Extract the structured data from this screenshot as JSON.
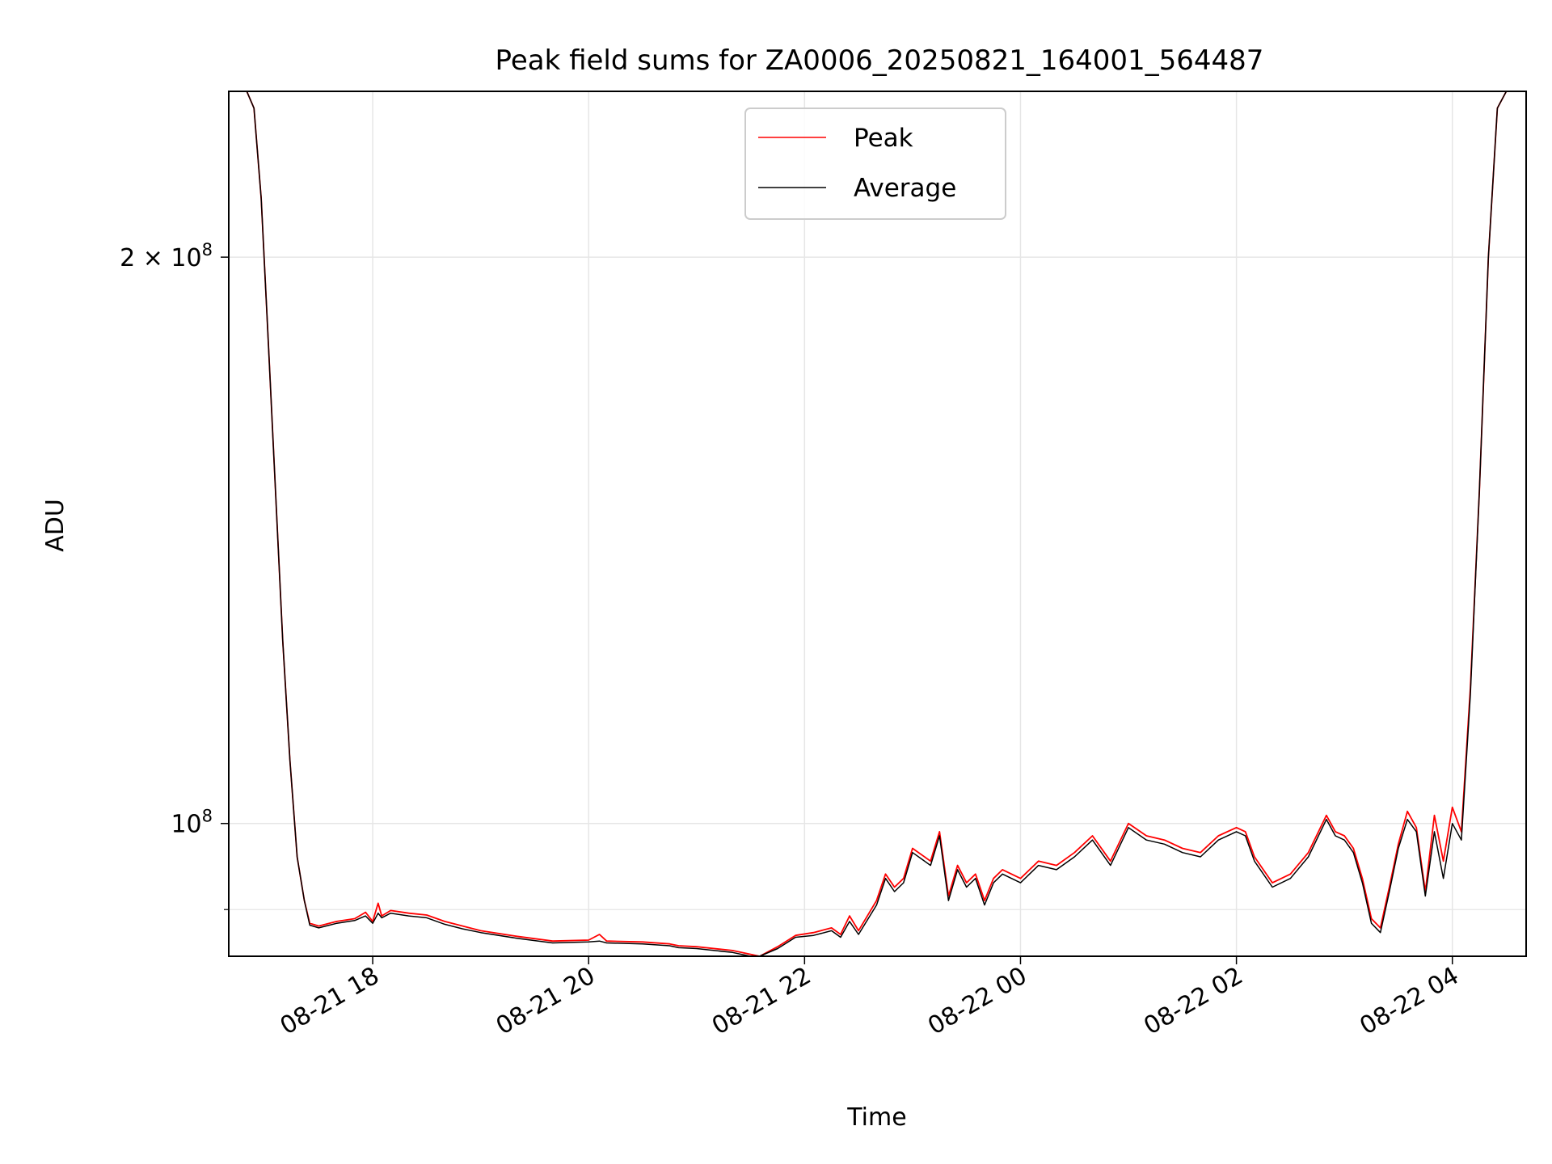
{
  "chart_data": {
    "type": "line",
    "title": "Peak field sums for ZA0006_20250821_164001_564487",
    "xlabel": "Time",
    "ylabel": "ADU",
    "x_scale": "time",
    "y_scale": "log",
    "xlim": [
      "2025-08-21 16:40",
      "2025-08-22 04:41"
    ],
    "ylim": [
      85000000,
      245000000
    ],
    "x_ticks": [
      {
        "t": "2025-08-21 18:00",
        "label": "08-21 18"
      },
      {
        "t": "2025-08-21 20:00",
        "label": "08-21 20"
      },
      {
        "t": "2025-08-21 22:00",
        "label": "08-21 22"
      },
      {
        "t": "2025-08-22 00:00",
        "label": "08-22 00"
      },
      {
        "t": "2025-08-22 02:00",
        "label": "08-22 02"
      },
      {
        "t": "2025-08-22 04:00",
        "label": "08-22 04"
      }
    ],
    "y_ticks": [
      {
        "v": 100000000,
        "label_base": "10",
        "label_exp": "8"
      },
      {
        "v": 200000000,
        "label_base": "2 × 10",
        "label_exp": "8"
      }
    ],
    "y_minor_ticks": [
      90000000
    ],
    "grid": true,
    "legend": {
      "position": "upper center",
      "entries": [
        "Peak",
        "Average"
      ]
    },
    "series": [
      {
        "name": "Peak",
        "color": "#ff0000",
        "x": [
          "2025-08-21 16:50",
          "2025-08-21 16:54",
          "2025-08-21 16:58",
          "2025-08-21 17:02",
          "2025-08-21 17:06",
          "2025-08-21 17:10",
          "2025-08-21 17:14",
          "2025-08-21 17:18",
          "2025-08-21 17:22",
          "2025-08-21 17:25",
          "2025-08-21 17:30",
          "2025-08-21 17:40",
          "2025-08-21 17:50",
          "2025-08-21 17:56",
          "2025-08-21 18:00",
          "2025-08-21 18:03",
          "2025-08-21 18:05",
          "2025-08-21 18:10",
          "2025-08-21 18:20",
          "2025-08-21 18:30",
          "2025-08-21 18:40",
          "2025-08-21 18:50",
          "2025-08-21 19:00",
          "2025-08-21 19:20",
          "2025-08-21 19:40",
          "2025-08-21 20:00",
          "2025-08-21 20:06",
          "2025-08-21 20:10",
          "2025-08-21 20:30",
          "2025-08-21 20:45",
          "2025-08-21 20:50",
          "2025-08-21 21:00",
          "2025-08-21 21:20",
          "2025-08-21 21:30",
          "2025-08-21 21:35",
          "2025-08-21 21:45",
          "2025-08-21 21:55",
          "2025-08-21 22:05",
          "2025-08-21 22:15",
          "2025-08-21 22:20",
          "2025-08-21 22:25",
          "2025-08-21 22:30",
          "2025-08-21 22:40",
          "2025-08-21 22:45",
          "2025-08-21 22:50",
          "2025-08-21 22:55",
          "2025-08-21 23:00",
          "2025-08-21 23:10",
          "2025-08-21 23:15",
          "2025-08-21 23:20",
          "2025-08-21 23:25",
          "2025-08-21 23:30",
          "2025-08-21 23:35",
          "2025-08-21 23:40",
          "2025-08-21 23:45",
          "2025-08-21 23:50",
          "2025-08-22 00:00",
          "2025-08-22 00:10",
          "2025-08-22 00:20",
          "2025-08-22 00:30",
          "2025-08-22 00:40",
          "2025-08-22 00:50",
          "2025-08-22 01:00",
          "2025-08-22 01:10",
          "2025-08-22 01:20",
          "2025-08-22 01:30",
          "2025-08-22 01:40",
          "2025-08-22 01:50",
          "2025-08-22 02:00",
          "2025-08-22 02:05",
          "2025-08-22 02:10",
          "2025-08-22 02:20",
          "2025-08-22 02:30",
          "2025-08-22 02:40",
          "2025-08-22 02:50",
          "2025-08-22 02:55",
          "2025-08-22 03:00",
          "2025-08-22 03:05",
          "2025-08-22 03:10",
          "2025-08-22 03:15",
          "2025-08-22 03:20",
          "2025-08-22 03:25",
          "2025-08-22 03:30",
          "2025-08-22 03:35",
          "2025-08-22 03:40",
          "2025-08-22 03:45",
          "2025-08-22 03:50",
          "2025-08-22 03:55",
          "2025-08-22 04:00",
          "2025-08-22 04:05",
          "2025-08-22 04:10",
          "2025-08-22 04:15",
          "2025-08-22 04:20",
          "2025-08-22 04:25",
          "2025-08-22 04:30",
          "2025-08-22 04:35",
          "2025-08-22 04:41"
        ],
        "values": [
          245000000,
          240000000,
          215000000,
          180000000,
          150000000,
          125000000,
          108000000,
          96000000,
          91000000,
          88500000,
          88200000,
          88700000,
          89000000,
          89700000,
          88700000,
          90700000,
          89300000,
          89900000,
          89600000,
          89400000,
          88700000,
          88200000,
          87700000,
          87100000,
          86600000,
          86700000,
          87300000,
          86600000,
          86500000,
          86300000,
          86100000,
          86000000,
          85600000,
          85200000,
          85000000,
          86000000,
          87200000,
          87500000,
          88000000,
          87300000,
          89300000,
          87700000,
          91000000,
          94000000,
          92500000,
          93500000,
          97000000,
          95500000,
          99000000,
          91500000,
          95000000,
          93000000,
          94000000,
          91000000,
          93500000,
          94500000,
          93500000,
          95500000,
          95000000,
          96500000,
          98500000,
          95500000,
          100000000,
          98500000,
          98000000,
          97000000,
          96500000,
          98500000,
          99500000,
          99000000,
          96000000,
          93000000,
          94000000,
          96500000,
          101000000,
          99000000,
          98500000,
          97000000,
          93500000,
          89000000,
          88000000,
          92500000,
          97500000,
          101500000,
          99500000,
          92000000,
          101000000,
          95500000,
          102000000,
          99000000,
          118000000,
          150000000,
          200000000,
          240000000,
          245000000,
          245000000,
          245000000
        ]
      },
      {
        "name": "Average",
        "color": "#000000",
        "x": [
          "2025-08-21 16:50",
          "2025-08-21 16:54",
          "2025-08-21 16:58",
          "2025-08-21 17:02",
          "2025-08-21 17:06",
          "2025-08-21 17:10",
          "2025-08-21 17:14",
          "2025-08-21 17:18",
          "2025-08-21 17:22",
          "2025-08-21 17:25",
          "2025-08-21 17:30",
          "2025-08-21 17:40",
          "2025-08-21 17:50",
          "2025-08-21 17:56",
          "2025-08-21 18:00",
          "2025-08-21 18:03",
          "2025-08-21 18:05",
          "2025-08-21 18:10",
          "2025-08-21 18:20",
          "2025-08-21 18:30",
          "2025-08-21 18:40",
          "2025-08-21 18:50",
          "2025-08-21 19:00",
          "2025-08-21 19:20",
          "2025-08-21 19:40",
          "2025-08-21 20:00",
          "2025-08-21 20:06",
          "2025-08-21 20:10",
          "2025-08-21 20:30",
          "2025-08-21 20:45",
          "2025-08-21 20:50",
          "2025-08-21 21:00",
          "2025-08-21 21:20",
          "2025-08-21 21:30",
          "2025-08-21 21:35",
          "2025-08-21 21:45",
          "2025-08-21 21:55",
          "2025-08-21 22:05",
          "2025-08-21 22:15",
          "2025-08-21 22:20",
          "2025-08-21 22:25",
          "2025-08-21 22:30",
          "2025-08-21 22:40",
          "2025-08-21 22:45",
          "2025-08-21 22:50",
          "2025-08-21 22:55",
          "2025-08-21 23:00",
          "2025-08-21 23:10",
          "2025-08-21 23:15",
          "2025-08-21 23:20",
          "2025-08-21 23:25",
          "2025-08-21 23:30",
          "2025-08-21 23:35",
          "2025-08-21 23:40",
          "2025-08-21 23:45",
          "2025-08-21 23:50",
          "2025-08-22 00:00",
          "2025-08-22 00:10",
          "2025-08-22 00:20",
          "2025-08-22 00:30",
          "2025-08-22 00:40",
          "2025-08-22 00:50",
          "2025-08-22 01:00",
          "2025-08-22 01:10",
          "2025-08-22 01:20",
          "2025-08-22 01:30",
          "2025-08-22 01:40",
          "2025-08-22 01:50",
          "2025-08-22 02:00",
          "2025-08-22 02:05",
          "2025-08-22 02:10",
          "2025-08-22 02:20",
          "2025-08-22 02:30",
          "2025-08-22 02:40",
          "2025-08-22 02:50",
          "2025-08-22 02:55",
          "2025-08-22 03:00",
          "2025-08-22 03:05",
          "2025-08-22 03:10",
          "2025-08-22 03:15",
          "2025-08-22 03:20",
          "2025-08-22 03:25",
          "2025-08-22 03:30",
          "2025-08-22 03:35",
          "2025-08-22 03:40",
          "2025-08-22 03:45",
          "2025-08-22 03:50",
          "2025-08-22 03:55",
          "2025-08-22 04:00",
          "2025-08-22 04:05",
          "2025-08-22 04:10",
          "2025-08-22 04:15",
          "2025-08-22 04:20",
          "2025-08-22 04:25",
          "2025-08-22 04:30",
          "2025-08-22 04:35",
          "2025-08-22 04:41"
        ],
        "values": [
          245000000,
          240000000,
          215000000,
          180000000,
          150000000,
          125000000,
          108000000,
          96000000,
          91000000,
          88300000,
          88000000,
          88500000,
          88800000,
          89300000,
          88500000,
          89600000,
          89100000,
          89600000,
          89300000,
          89100000,
          88400000,
          87900000,
          87500000,
          86900000,
          86400000,
          86500000,
          86600000,
          86400000,
          86300000,
          86100000,
          85900000,
          85800000,
          85400000,
          85000000,
          84800000,
          85800000,
          87000000,
          87200000,
          87700000,
          87000000,
          88700000,
          87300000,
          90500000,
          93500000,
          92000000,
          93000000,
          96500000,
          95000000,
          98500000,
          91000000,
          94500000,
          92500000,
          93500000,
          90500000,
          93000000,
          94000000,
          93000000,
          95000000,
          94500000,
          96000000,
          98000000,
          95000000,
          99500000,
          98000000,
          97500000,
          96500000,
          96000000,
          98000000,
          99000000,
          98500000,
          95500000,
          92500000,
          93500000,
          96000000,
          100500000,
          98500000,
          98000000,
          96500000,
          93000000,
          88500000,
          87500000,
          92000000,
          97000000,
          100500000,
          99000000,
          91500000,
          99000000,
          93500000,
          100000000,
          98000000,
          117000000,
          150000000,
          200000000,
          240000000,
          245000000,
          245000000,
          245000000
        ]
      }
    ]
  }
}
